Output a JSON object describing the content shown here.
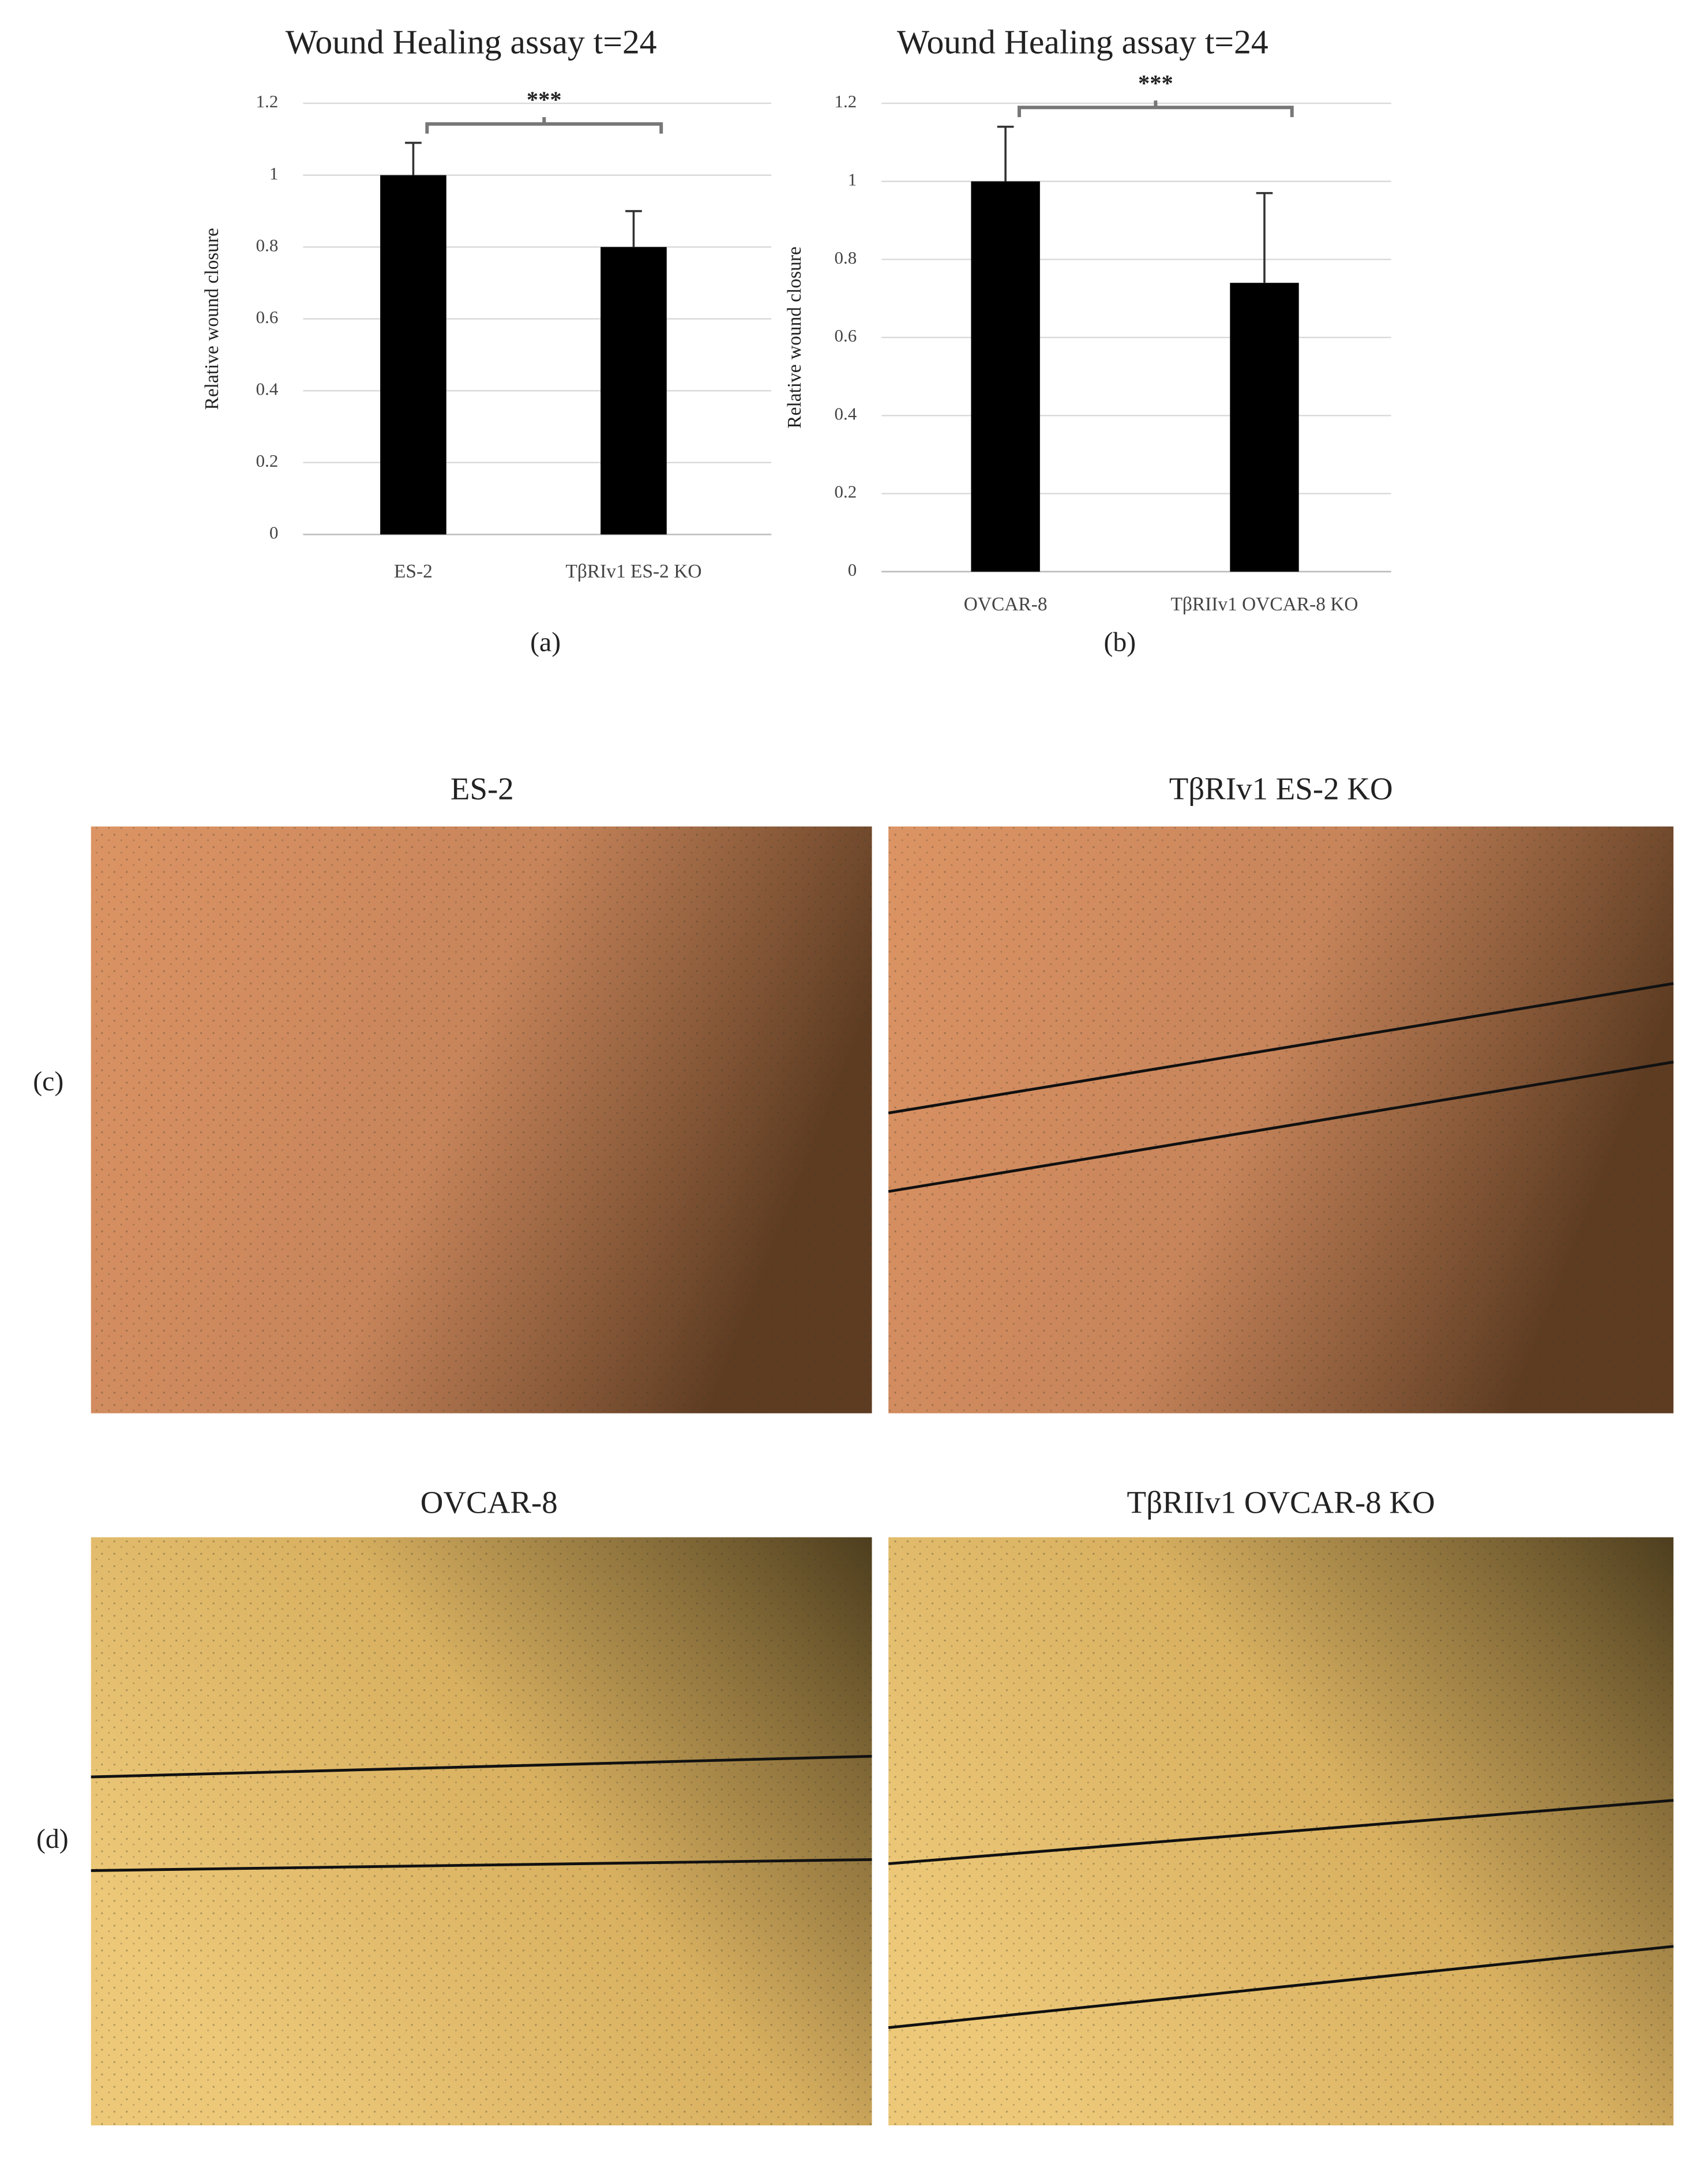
{
  "chart_data": [
    {
      "type": "bar",
      "title": "Wound Healing assay t=24",
      "y_label": "Relative wound closure",
      "categories": [
        "ES-2",
        "TβRIv1 ES-2 KO"
      ],
      "values": [
        1.0,
        0.8
      ],
      "errors": [
        0.09,
        0.1
      ],
      "color": "#000000",
      "ylim": [
        0,
        1.2
      ],
      "yticks": [
        0,
        0.2,
        0.4,
        0.6,
        0.8,
        1,
        1.2
      ],
      "grid": true,
      "annotation": "***",
      "panel_label": "(a)"
    },
    {
      "type": "bar",
      "title": "Wound Healing assay t=24",
      "y_label": "Relative wound closure",
      "categories": [
        "OVCAR-8",
        "TβRIIv1 OVCAR-8 KO"
      ],
      "values": [
        1.0,
        0.74
      ],
      "errors": [
        0.14,
        0.23
      ],
      "color": "#000000",
      "ylim": [
        0,
        1.2
      ],
      "yticks": [
        0,
        0.2,
        0.4,
        0.6,
        0.8,
        1,
        1.2
      ],
      "grid": true,
      "annotation": "***",
      "panel_label": "(b)"
    }
  ],
  "image_rows": [
    {
      "label": "(c)",
      "images": [
        {
          "title": "ES-2"
        },
        {
          "title": "TβRIv1 ES-2 KO"
        }
      ]
    },
    {
      "label": "(d)",
      "images": [
        {
          "title": "OVCAR-8"
        },
        {
          "title": "TβRIIv1 OVCAR-8 KO"
        }
      ]
    }
  ]
}
